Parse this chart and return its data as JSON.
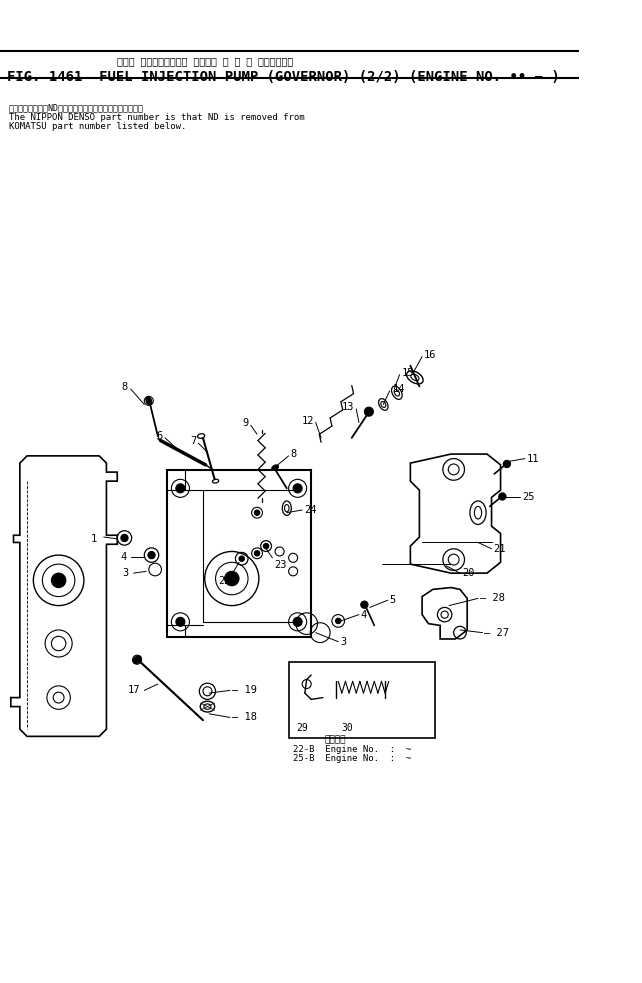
{
  "title_jp": "フェル インジェクション ポンプ・ カ バ ナ 　　適用号機",
  "title_en": "FIG. 1461  FUEL INJECTION PUMP (GOVERNOR) (2/2) (ENGINE NO. •• − )",
  "note_jp": "品番のメーカ記号NDを除いたものが日本電装の品番です．",
  "note_en1": "The NIPPON DENSO part number is that ND is removed from",
  "note_en2": "KOMATSU part number listed below.",
  "engine_note_title": "適用号機",
  "engine_note1": "22-B  Engine No.  :  ~",
  "engine_note2": "25-B  Engine No.  :  ~",
  "bg_color": "#ffffff",
  "diagram_color": "#000000"
}
